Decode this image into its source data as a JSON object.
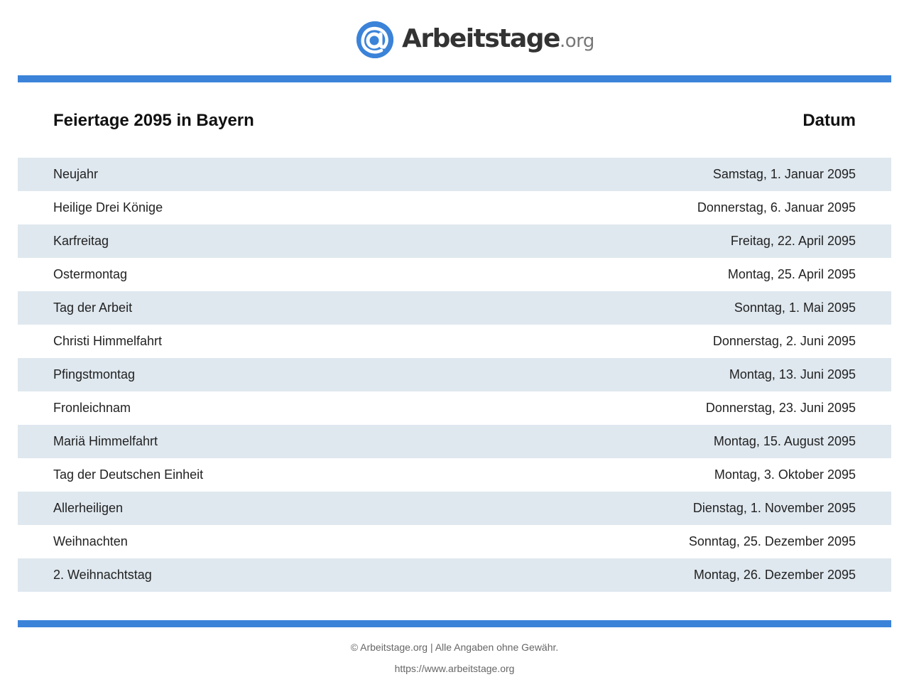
{
  "brand": {
    "name": "Arbeitstage",
    "tld": ".org",
    "accent_color": "#3b83d9",
    "icon": "at-sign-icon"
  },
  "table": {
    "title": "Feiertage 2095 in Bayern",
    "date_header": "Datum",
    "rows": [
      {
        "name": "Neujahr",
        "date": "Samstag, 1. Januar 2095"
      },
      {
        "name": "Heilige Drei Könige",
        "date": "Donnerstag, 6. Januar 2095"
      },
      {
        "name": "Karfreitag",
        "date": "Freitag, 22. April 2095"
      },
      {
        "name": "Ostermontag",
        "date": "Montag, 25. April 2095"
      },
      {
        "name": "Tag der Arbeit",
        "date": "Sonntag, 1. Mai 2095"
      },
      {
        "name": "Christi Himmelfahrt",
        "date": "Donnerstag, 2. Juni 2095"
      },
      {
        "name": "Pfingstmontag",
        "date": "Montag, 13. Juni 2095"
      },
      {
        "name": "Fronleichnam",
        "date": "Donnerstag, 23. Juni 2095"
      },
      {
        "name": "Mariä Himmelfahrt",
        "date": "Montag, 15. August 2095"
      },
      {
        "name": "Tag der Deutschen Einheit",
        "date": "Montag, 3. Oktober 2095"
      },
      {
        "name": "Allerheiligen",
        "date": "Dienstag, 1. November 2095"
      },
      {
        "name": "Weihnachten",
        "date": "Sonntag, 25. Dezember 2095"
      },
      {
        "name": "2. Weihnachtstag",
        "date": "Montag, 26. Dezember 2095"
      }
    ]
  },
  "footer": {
    "copyright": "© Arbeitstage.org | Alle Angaben ohne Gewähr.",
    "url": "https://www.arbeitstage.org"
  }
}
